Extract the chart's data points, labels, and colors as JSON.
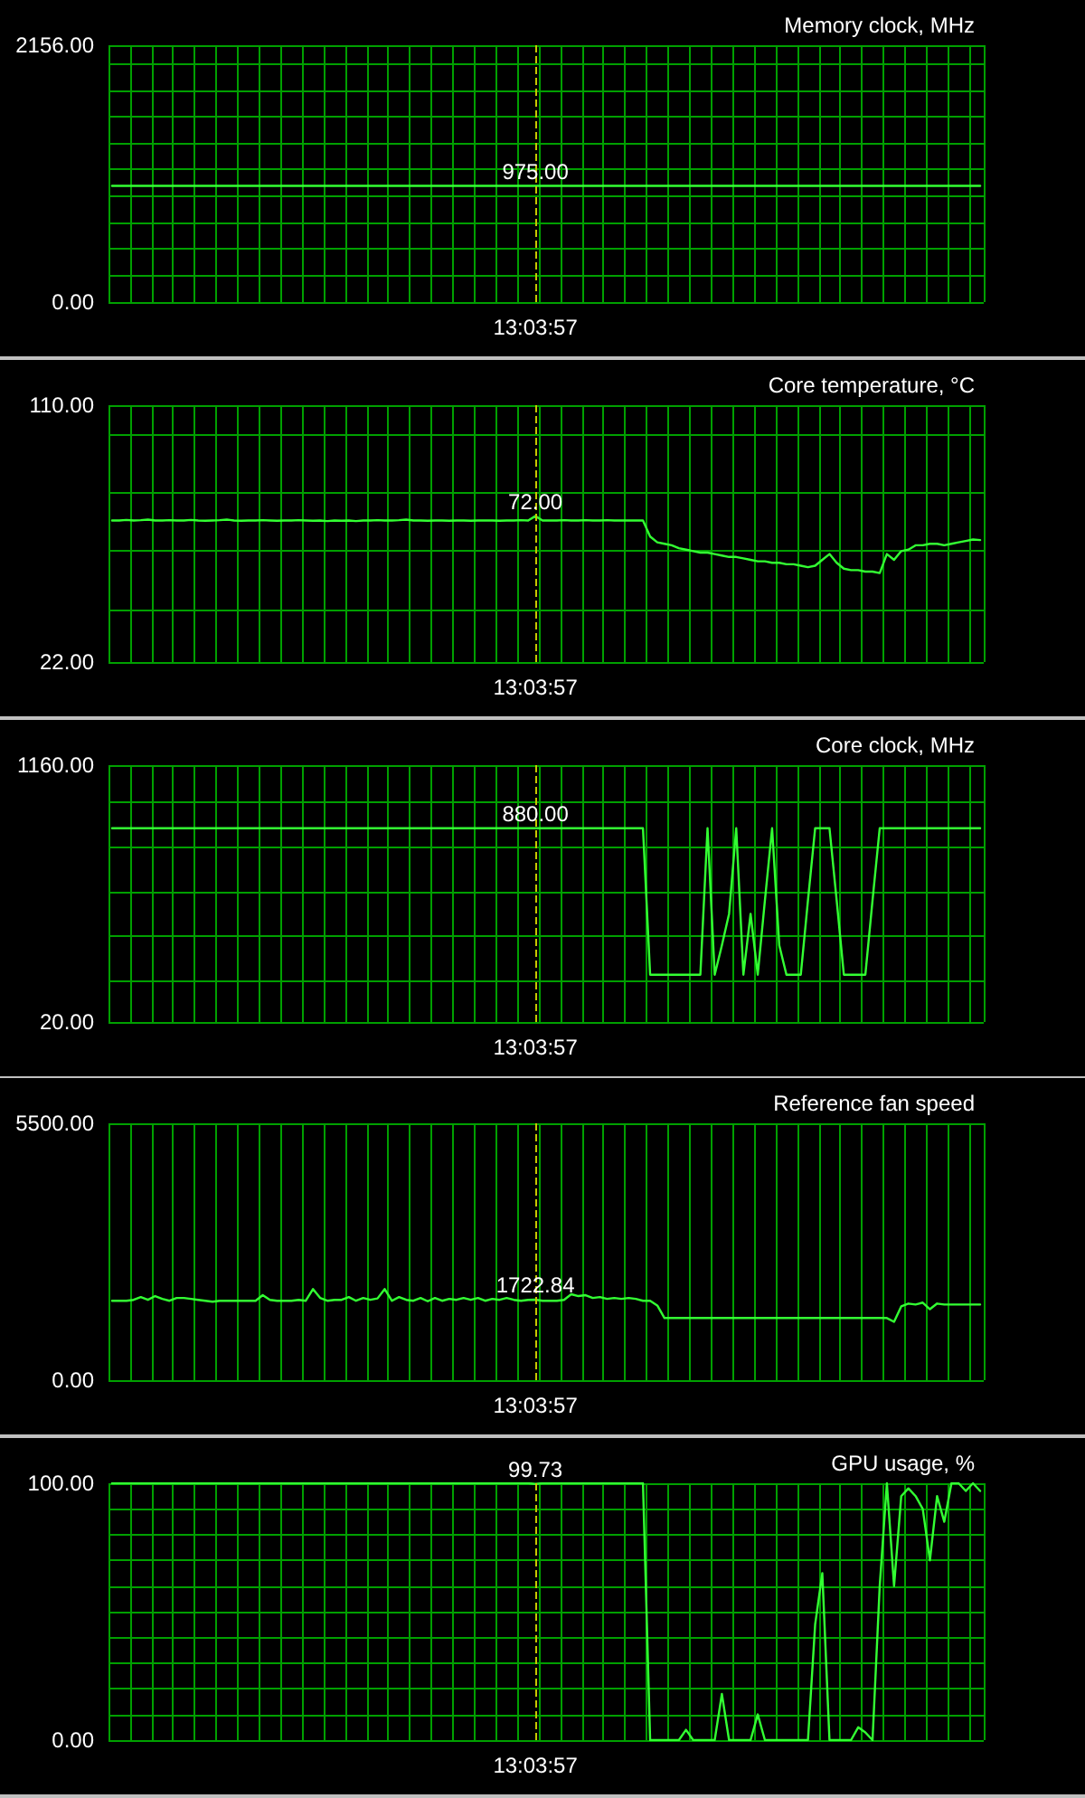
{
  "chart_data": [
    {
      "type": "line",
      "title": "Memory clock, MHz",
      "color": "#33ff33",
      "categories": [
        null,
        null,
        null,
        null,
        null,
        null,
        null,
        null,
        null,
        null,
        null,
        null,
        null,
        null,
        null,
        null,
        null,
        null,
        null,
        null,
        null,
        null,
        null,
        null,
        null,
        null,
        null,
        null,
        null,
        null,
        null,
        null,
        null,
        null,
        null,
        null,
        null,
        null,
        null,
        null,
        null,
        null,
        null,
        null,
        null,
        null,
        null,
        null,
        null,
        null,
        null,
        null,
        null,
        null,
        null,
        null,
        null,
        null,
        null,
        "13:03:57",
        null,
        null,
        null,
        null,
        null,
        null,
        null,
        null,
        null,
        null,
        null,
        null,
        null,
        null,
        null,
        null,
        null,
        null,
        null,
        null,
        null,
        null,
        null,
        null,
        null,
        null,
        null,
        null,
        null,
        null,
        null,
        null,
        null,
        null,
        null,
        null,
        null,
        null,
        null,
        null,
        null,
        null,
        null,
        null,
        null,
        null,
        null,
        null,
        null,
        null,
        null,
        null,
        null,
        null,
        null,
        null,
        null,
        null,
        null,
        null,
        null,
        null
      ],
      "values": [
        975,
        975,
        975,
        975,
        975,
        975,
        975,
        975,
        975,
        975,
        975,
        975,
        975,
        975,
        975,
        975,
        975,
        975,
        975,
        975,
        975,
        975,
        975,
        975,
        975,
        975,
        975,
        975,
        975,
        975,
        975,
        975,
        975,
        975,
        975,
        975,
        975,
        975,
        975,
        975,
        975,
        975,
        975,
        975,
        975,
        975,
        975,
        975,
        975,
        975,
        975,
        975,
        975,
        975,
        975,
        975,
        975,
        975,
        975,
        975,
        975,
        975,
        975,
        975,
        975,
        975,
        975,
        975,
        975,
        975,
        975,
        975,
        975,
        975,
        975,
        975,
        975,
        975,
        975,
        975,
        975,
        975,
        975,
        975,
        975,
        975,
        975,
        975,
        975,
        975,
        975,
        975,
        975,
        975,
        975,
        975,
        975,
        975,
        975,
        975,
        975,
        975,
        975,
        975,
        975,
        975,
        975,
        975,
        975,
        975,
        975,
        975,
        975,
        975,
        975,
        975,
        975,
        975,
        975,
        975,
        975,
        975
      ],
      "ylim": [
        0,
        2156
      ],
      "yticks": [
        {
          "value": 0,
          "label": "0.00"
        },
        {
          "value": 223,
          "label": null
        },
        {
          "value": 445,
          "label": null
        },
        {
          "value": 668,
          "label": null
        },
        {
          "value": 890,
          "label": null
        },
        {
          "value": 1113,
          "label": null
        },
        {
          "value": 1335,
          "label": null
        },
        {
          "value": 1558,
          "label": null
        },
        {
          "value": 1780,
          "label": null
        },
        {
          "value": 2003,
          "label": null
        },
        {
          "value": 2156,
          "label": "2156.00"
        }
      ],
      "grid": true,
      "ref_lines": [
        {
          "axis": "x",
          "value": "13:03:57",
          "color": "#c8c800",
          "line_style": "dashed"
        }
      ],
      "annotations": [
        {
          "text": "975.00",
          "x": "13:03:57",
          "y": 975
        }
      ]
    },
    {
      "type": "line",
      "title": "Core temperature, °C",
      "color": "#33ff33",
      "categories": [
        null,
        null,
        null,
        null,
        null,
        null,
        null,
        null,
        null,
        null,
        null,
        null,
        null,
        null,
        null,
        null,
        null,
        null,
        null,
        null,
        null,
        null,
        null,
        null,
        null,
        null,
        null,
        null,
        null,
        null,
        null,
        null,
        null,
        null,
        null,
        null,
        null,
        null,
        null,
        null,
        null,
        null,
        null,
        null,
        null,
        null,
        null,
        null,
        null,
        null,
        null,
        null,
        null,
        null,
        null,
        null,
        null,
        null,
        null,
        "13:03:57",
        null,
        null,
        null,
        null,
        null,
        null,
        null,
        null,
        null,
        null,
        null,
        null,
        null,
        null,
        null,
        null,
        null,
        null,
        null,
        null,
        null,
        null,
        null,
        null,
        null,
        null,
        null,
        null,
        null,
        null,
        null,
        null,
        null,
        null,
        null,
        null,
        null,
        null,
        null,
        null,
        null,
        null,
        null,
        null,
        null,
        null,
        null,
        null,
        null,
        null,
        null,
        null,
        null,
        null,
        null,
        null,
        null,
        null,
        null,
        null,
        null,
        null
      ],
      "values": [
        70.5,
        70.5,
        70.7,
        70.5,
        70.6,
        70.8,
        70.5,
        70.5,
        70.6,
        70.5,
        70.5,
        70.7,
        70.5,
        70.4,
        70.5,
        70.6,
        70.8,
        70.5,
        70.4,
        70.5,
        70.5,
        70.6,
        70.5,
        70.4,
        70.5,
        70.5,
        70.6,
        70.5,
        70.4,
        70.5,
        70.3,
        70.5,
        70.4,
        70.5,
        70.3,
        70.5,
        70.5,
        70.6,
        70.5,
        70.5,
        70.6,
        70.8,
        70.5,
        70.5,
        70.4,
        70.5,
        70.5,
        70.4,
        70.5,
        70.5,
        70.4,
        70.5,
        70.5,
        70.5,
        70.4,
        70.5,
        70.5,
        70.6,
        70.5,
        72,
        70.5,
        70.5,
        70.5,
        70.6,
        70.5,
        70.5,
        70.6,
        70.5,
        70.5,
        70.6,
        70.5,
        70.5,
        70.5,
        70.5,
        70.5,
        65,
        63,
        62.5,
        62,
        61,
        60.5,
        60,
        59.5,
        59.5,
        59,
        58.5,
        58,
        58,
        57.5,
        57,
        56.5,
        56.5,
        56,
        56,
        55.5,
        55.5,
        55,
        54.5,
        55,
        57,
        59,
        56,
        54,
        53.5,
        53.5,
        53,
        53,
        52.5,
        59,
        57,
        60,
        60.5,
        62,
        62,
        62.5,
        62.5,
        62,
        62.5,
        63,
        63.5,
        64,
        63.8
      ],
      "ylim": [
        22,
        110
      ],
      "yticks": [
        {
          "value": 22,
          "label": "22.00"
        },
        {
          "value": 40,
          "label": null
        },
        {
          "value": 60,
          "label": null
        },
        {
          "value": 80,
          "label": null
        },
        {
          "value": 100,
          "label": null
        },
        {
          "value": 110,
          "label": "110.00"
        }
      ],
      "grid": true,
      "ref_lines": [
        {
          "axis": "x",
          "value": "13:03:57",
          "color": "#c8c800",
          "line_style": "dashed"
        }
      ],
      "annotations": [
        {
          "text": "72.00",
          "x": "13:03:57",
          "y": 72
        }
      ]
    },
    {
      "type": "line",
      "title": "Core clock, MHz",
      "color": "#33ff33",
      "categories": [
        null,
        null,
        null,
        null,
        null,
        null,
        null,
        null,
        null,
        null,
        null,
        null,
        null,
        null,
        null,
        null,
        null,
        null,
        null,
        null,
        null,
        null,
        null,
        null,
        null,
        null,
        null,
        null,
        null,
        null,
        null,
        null,
        null,
        null,
        null,
        null,
        null,
        null,
        null,
        null,
        null,
        null,
        null,
        null,
        null,
        null,
        null,
        null,
        null,
        null,
        null,
        null,
        null,
        null,
        null,
        null,
        null,
        null,
        null,
        "13:03:57",
        null,
        null,
        null,
        null,
        null,
        null,
        null,
        null,
        null,
        null,
        null,
        null,
        null,
        null,
        null,
        null,
        null,
        null,
        null,
        null,
        null,
        null,
        null,
        null,
        null,
        null,
        null,
        null,
        null,
        null,
        null,
        null,
        null,
        null,
        null,
        null,
        null,
        null,
        null,
        null,
        null,
        null,
        null,
        null,
        null,
        null,
        null,
        null,
        null,
        null,
        null,
        null,
        null,
        null,
        null,
        null,
        null,
        null,
        null,
        null,
        null,
        null
      ],
      "values": [
        880,
        880,
        880,
        880,
        880,
        880,
        880,
        880,
        880,
        880,
        880,
        880,
        880,
        880,
        880,
        880,
        880,
        880,
        880,
        880,
        880,
        880,
        880,
        880,
        880,
        880,
        880,
        880,
        880,
        880,
        880,
        880,
        880,
        880,
        880,
        880,
        880,
        880,
        880,
        880,
        880,
        880,
        880,
        880,
        880,
        880,
        880,
        880,
        880,
        880,
        880,
        880,
        880,
        880,
        880,
        880,
        880,
        880,
        880,
        880,
        880,
        880,
        880,
        880,
        880,
        880,
        880,
        880,
        880,
        880,
        880,
        880,
        880,
        880,
        880,
        230,
        230,
        230,
        230,
        230,
        230,
        230,
        230,
        880,
        230,
        360,
        500,
        880,
        230,
        500,
        230,
        560,
        880,
        360,
        230,
        230,
        230,
        560,
        880,
        880,
        880,
        560,
        230,
        230,
        230,
        230,
        560,
        880,
        880,
        880,
        880,
        880,
        880,
        880,
        880,
        880,
        880,
        880,
        880,
        880,
        880,
        880
      ],
      "ylim": [
        20,
        1160
      ],
      "yticks": [
        {
          "value": 20,
          "label": "20.00"
        },
        {
          "value": 200,
          "label": null
        },
        {
          "value": 400,
          "label": null
        },
        {
          "value": 600,
          "label": null
        },
        {
          "value": 800,
          "label": null
        },
        {
          "value": 1000,
          "label": null
        },
        {
          "value": 1160,
          "label": "1160.00"
        }
      ],
      "grid": true,
      "ref_lines": [
        {
          "axis": "x",
          "value": "13:03:57",
          "color": "#c8c800",
          "line_style": "dashed"
        }
      ],
      "annotations": [
        {
          "text": "880.00",
          "x": "13:03:57",
          "y": 880
        }
      ]
    },
    {
      "type": "line",
      "title": "Reference fan speed",
      "color": "#33ff33",
      "categories": [
        null,
        null,
        null,
        null,
        null,
        null,
        null,
        null,
        null,
        null,
        null,
        null,
        null,
        null,
        null,
        null,
        null,
        null,
        null,
        null,
        null,
        null,
        null,
        null,
        null,
        null,
        null,
        null,
        null,
        null,
        null,
        null,
        null,
        null,
        null,
        null,
        null,
        null,
        null,
        null,
        null,
        null,
        null,
        null,
        null,
        null,
        null,
        null,
        null,
        null,
        null,
        null,
        null,
        null,
        null,
        null,
        null,
        null,
        null,
        "13:03:57",
        null,
        null,
        null,
        null,
        null,
        null,
        null,
        null,
        null,
        null,
        null,
        null,
        null,
        null,
        null,
        null,
        null,
        null,
        null,
        null,
        null,
        null,
        null,
        null,
        null,
        null,
        null,
        null,
        null,
        null,
        null,
        null,
        null,
        null,
        null,
        null,
        null,
        null,
        null,
        null,
        null,
        null,
        null,
        null,
        null,
        null,
        null,
        null,
        null,
        null,
        null,
        null,
        null,
        null,
        null,
        null,
        null,
        null,
        null,
        null,
        null,
        null
      ],
      "values": [
        1700,
        1700,
        1700,
        1720,
        1780,
        1720,
        1800,
        1740,
        1700,
        1760,
        1760,
        1740,
        1720,
        1700,
        1680,
        1700,
        1700,
        1700,
        1700,
        1700,
        1700,
        1820,
        1720,
        1700,
        1700,
        1700,
        1720,
        1700,
        1950,
        1760,
        1700,
        1720,
        1720,
        1780,
        1700,
        1760,
        1720,
        1750,
        1950,
        1700,
        1780,
        1720,
        1700,
        1760,
        1690,
        1760,
        1700,
        1740,
        1720,
        1760,
        1720,
        1760,
        1700,
        1740,
        1720,
        1760,
        1720,
        1700,
        1720,
        1722.84,
        1700,
        1700,
        1700,
        1720,
        1840,
        1800,
        1820,
        1760,
        1780,
        1740,
        1760,
        1740,
        1760,
        1740,
        1700,
        1700,
        1600,
        1330,
        1330,
        1330,
        1330,
        1330,
        1330,
        1330,
        1330,
        1330,
        1330,
        1330,
        1330,
        1330,
        1330,
        1330,
        1330,
        1330,
        1330,
        1330,
        1330,
        1330,
        1330,
        1330,
        1330,
        1330,
        1330,
        1330,
        1330,
        1330,
        1330,
        1330,
        1330,
        1250,
        1580,
        1640,
        1620,
        1660,
        1520,
        1640,
        1620,
        1620,
        1620,
        1620,
        1620,
        1620
      ],
      "ylim": [
        0,
        5500
      ],
      "yticks": [
        {
          "value": 0,
          "label": "0.00"
        },
        {
          "value": 5500,
          "label": "5500.00"
        }
      ],
      "grid": true,
      "ref_lines": [
        {
          "axis": "x",
          "value": "13:03:57",
          "color": "#c8c800",
          "line_style": "dashed"
        }
      ],
      "annotations": [
        {
          "text": "1722.84",
          "x": "13:03:57",
          "y": 1722.84
        }
      ]
    },
    {
      "type": "line",
      "title": "GPU usage, %",
      "color": "#33ff33",
      "categories": [
        null,
        null,
        null,
        null,
        null,
        null,
        null,
        null,
        null,
        null,
        null,
        null,
        null,
        null,
        null,
        null,
        null,
        null,
        null,
        null,
        null,
        null,
        null,
        null,
        null,
        null,
        null,
        null,
        null,
        null,
        null,
        null,
        null,
        null,
        null,
        null,
        null,
        null,
        null,
        null,
        null,
        null,
        null,
        null,
        null,
        null,
        null,
        null,
        null,
        null,
        null,
        null,
        null,
        null,
        null,
        null,
        null,
        null,
        null,
        "13:03:57",
        null,
        null,
        null,
        null,
        null,
        null,
        null,
        null,
        null,
        null,
        null,
        null,
        null,
        null,
        null,
        null,
        null,
        null,
        null,
        null,
        null,
        null,
        null,
        null,
        null,
        null,
        null,
        null,
        null,
        null,
        null,
        null,
        null,
        null,
        null,
        null,
        null,
        null,
        null,
        null,
        null,
        null,
        null,
        null,
        null,
        null,
        null,
        null,
        null,
        null,
        null,
        null,
        null,
        null,
        null,
        null,
        null,
        null,
        null,
        null,
        null,
        null
      ],
      "values": [
        100,
        100,
        100,
        100,
        100,
        100,
        100,
        100,
        100,
        100,
        100,
        100,
        100,
        100,
        100,
        100,
        100,
        100,
        100,
        100,
        100,
        100,
        100,
        100,
        100,
        100,
        100,
        100,
        100,
        100,
        100,
        100,
        100,
        100,
        100,
        100,
        100,
        100,
        100,
        100,
        100,
        100,
        100,
        100,
        100,
        100,
        100,
        100,
        100,
        100,
        100,
        100,
        100,
        100,
        100,
        100,
        100,
        100,
        100,
        99.73,
        100,
        100,
        100,
        100,
        100,
        100,
        100,
        100,
        100,
        100,
        100,
        100,
        100,
        100,
        100,
        0,
        0,
        0,
        0,
        0,
        4,
        0,
        0,
        0,
        0,
        18,
        0,
        0,
        0,
        0,
        10,
        0,
        0,
        0,
        0,
        0,
        0,
        0,
        45,
        65,
        0,
        0,
        0,
        0,
        5,
        3,
        0,
        60,
        100,
        60,
        95,
        98,
        95,
        90,
        70,
        95,
        85,
        100,
        100,
        97,
        100,
        97
      ],
      "ylim": [
        0,
        100
      ],
      "yticks": [
        {
          "value": 0,
          "label": "0.00"
        },
        {
          "value": 10,
          "label": null
        },
        {
          "value": 20,
          "label": null
        },
        {
          "value": 30,
          "label": null
        },
        {
          "value": 40,
          "label": null
        },
        {
          "value": 50,
          "label": null
        },
        {
          "value": 60,
          "label": null
        },
        {
          "value": 70,
          "label": null
        },
        {
          "value": 80,
          "label": null
        },
        {
          "value": 90,
          "label": null
        },
        {
          "value": 100,
          "label": "100.00"
        }
      ],
      "grid": true,
      "ref_lines": [
        {
          "axis": "x",
          "value": "13:03:57",
          "color": "#c8c800",
          "line_style": "dashed"
        }
      ],
      "annotations": [
        {
          "text": "99.73",
          "x": "13:03:57",
          "y": 99.73
        }
      ]
    }
  ]
}
